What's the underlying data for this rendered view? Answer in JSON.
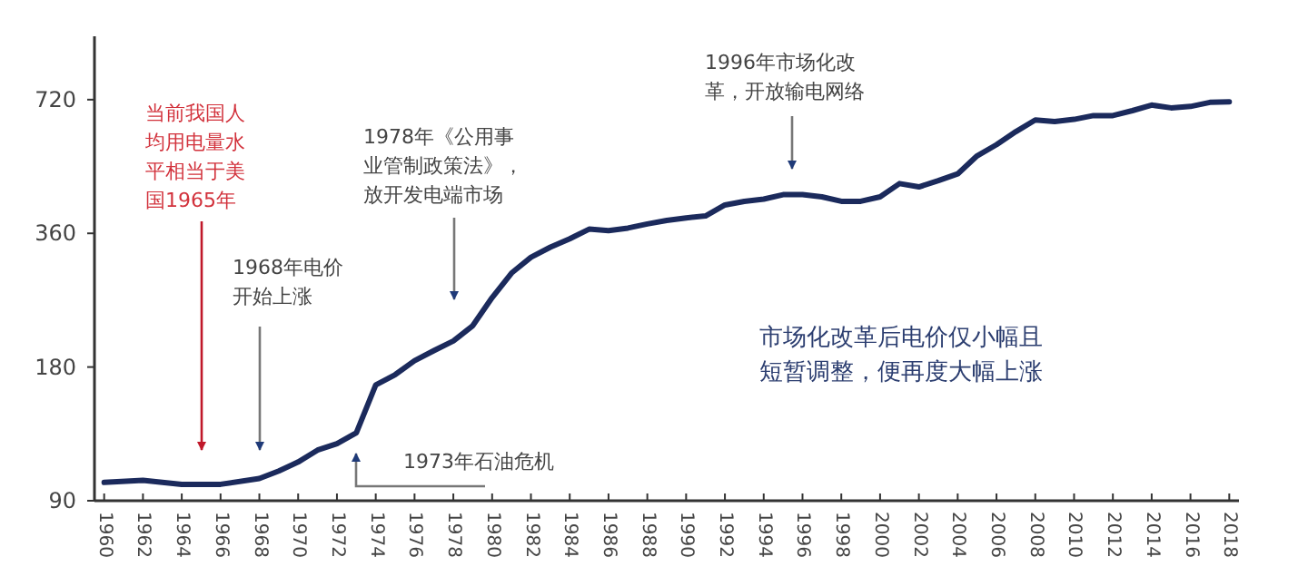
{
  "chart_data": {
    "type": "line",
    "log": true,
    "grid": false,
    "marker": "none",
    "line_style": "solid",
    "x": [
      1960,
      1962,
      1964,
      1966,
      1968,
      1969,
      1970,
      1971,
      1972,
      1973,
      1974,
      1975,
      1976,
      1977,
      1978,
      1979,
      1980,
      1981,
      1982,
      1983,
      1984,
      1985,
      1986,
      1987,
      1988,
      1989,
      1990,
      1991,
      1992,
      1993,
      1994,
      1995,
      1996,
      1997,
      1998,
      1999,
      2000,
      2001,
      2002,
      2003,
      2004,
      2005,
      2006,
      2007,
      2008,
      2009,
      2010,
      2011,
      2012,
      2013,
      2014,
      2015,
      2016,
      2017,
      2018
    ],
    "series": [
      {
        "color": "#1b2a5c",
        "values": [
          99,
          100,
          98,
          98,
          101,
          105,
          110,
          117,
          121,
          128,
          164,
          173,
          186,
          196,
          206,
          223,
          258,
          293,
          318,
          335,
          350,
          368,
          365,
          370,
          378,
          385,
          390,
          394,
          417,
          425,
          430,
          440,
          440,
          435,
          425,
          425,
          435,
          466,
          458,
          473,
          490,
          538,
          570,
          610,
          648,
          643,
          650,
          663,
          663,
          680,
          700,
          690,
          695,
          710,
          712
        ]
      }
    ],
    "xlim": [
      1959.5,
      2018.5
    ],
    "xticks": [
      1960,
      1962,
      1964,
      1966,
      1968,
      1970,
      1972,
      1974,
      1976,
      1978,
      1980,
      1982,
      1984,
      1986,
      1988,
      1990,
      1992,
      1994,
      1996,
      1998,
      2000,
      2002,
      2004,
      2006,
      2008,
      2010,
      2012,
      2014,
      2016,
      2018
    ],
    "ylim": [
      90,
      1000
    ],
    "yticks": [
      90,
      180,
      360,
      720
    ],
    "annotations": [
      "当前我国人均用电量水平相当于美国1965年",
      "1968年电价开始上涨",
      "1978年《公用事业管制政策法》，放开发电端市场",
      "1973年石油危机",
      "1996年市场化改革，开放输电网络",
      "市场化改革后电价仅小幅且短暂调整，便再度大幅上涨"
    ]
  }
}
